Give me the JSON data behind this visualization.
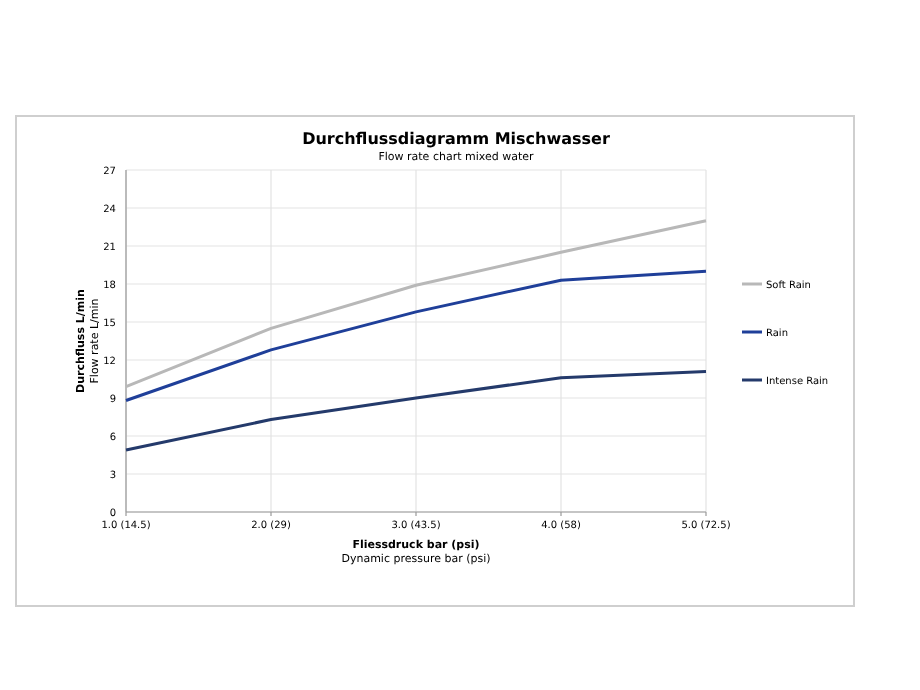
{
  "chart_data": {
    "type": "line",
    "title": "Durchflussdiagramm Mischwasser",
    "subtitle": "Flow rate chart mixed water",
    "xlabel": "Fliessdruck bar (psi)\nDynamic pressure bar (psi)",
    "ylabel": "Durchfluss L/min\nFlow rate L/min",
    "categories": [
      "1.0 (14.5)",
      "2.0 (29)",
      "3.0 (43.5)",
      "4.0 (58)",
      "5.0 (72.5)"
    ],
    "series": [
      {
        "name": "Soft Rain",
        "color": "#b8b8b8",
        "values": [
          9.9,
          14.5,
          17.9,
          20.5,
          23.0
        ]
      },
      {
        "name": "Rain",
        "color": "#1f3f99",
        "values": [
          8.8,
          12.8,
          15.8,
          18.3,
          19.0
        ]
      },
      {
        "name": "Intense Rain",
        "color": "#243a6b",
        "values": [
          4.9,
          7.3,
          9.0,
          10.6,
          11.1
        ]
      }
    ],
    "ylim": [
      0,
      27
    ],
    "yticks": [
      0,
      3,
      6,
      9,
      12,
      15,
      18,
      21,
      24,
      27
    ],
    "grid": true,
    "legend": "right",
    "marker": "none",
    "line_style": "solid"
  }
}
